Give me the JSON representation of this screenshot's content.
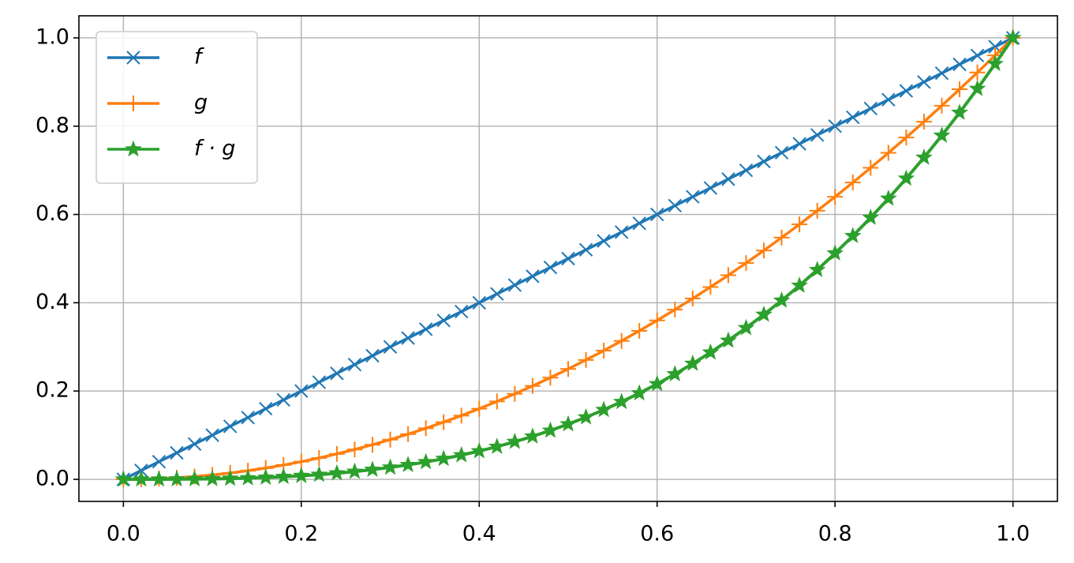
{
  "chart_data": {
    "type": "line",
    "x": [
      0,
      0.02,
      0.04,
      0.06,
      0.08,
      0.1,
      0.12,
      0.14,
      0.16,
      0.18,
      0.2,
      0.22,
      0.24,
      0.26,
      0.28,
      0.3,
      0.32,
      0.34,
      0.36,
      0.38,
      0.4,
      0.42,
      0.44,
      0.46,
      0.48,
      0.5,
      0.52,
      0.54,
      0.56,
      0.58,
      0.6,
      0.62,
      0.64,
      0.66,
      0.68,
      0.7,
      0.72,
      0.74,
      0.76,
      0.78,
      0.8,
      0.82,
      0.84,
      0.86,
      0.88,
      0.9,
      0.92,
      0.94,
      0.96,
      0.98,
      1
    ],
    "series": [
      {
        "name": "f",
        "color": "#1f77b4",
        "marker": "x",
        "values": [
          0,
          0.02,
          0.04,
          0.06,
          0.08,
          0.1,
          0.12,
          0.14,
          0.16,
          0.18,
          0.2,
          0.22,
          0.24,
          0.26,
          0.28,
          0.3,
          0.32,
          0.34,
          0.36,
          0.38,
          0.4,
          0.42,
          0.44,
          0.46,
          0.48,
          0.5,
          0.52,
          0.54,
          0.56,
          0.58,
          0.6,
          0.62,
          0.64,
          0.66,
          0.68,
          0.7,
          0.72,
          0.74,
          0.76,
          0.78,
          0.8,
          0.82,
          0.84,
          0.86,
          0.88,
          0.9,
          0.92,
          0.94,
          0.96,
          0.98,
          1
        ]
      },
      {
        "name": "g",
        "color": "#ff7f0e",
        "marker": "+",
        "values": [
          0,
          0.0004,
          0.0016,
          0.0036,
          0.0064,
          0.01,
          0.0144,
          0.0196,
          0.0256,
          0.0324,
          0.04,
          0.0484,
          0.0576,
          0.0676,
          0.0784,
          0.09,
          0.1024,
          0.1156,
          0.1296,
          0.1444,
          0.16,
          0.1764,
          0.1936,
          0.2116,
          0.2304,
          0.25,
          0.2704,
          0.2916,
          0.3136,
          0.3364,
          0.36,
          0.3844,
          0.4096,
          0.4356,
          0.4624,
          0.49,
          0.5184,
          0.5476,
          0.5776,
          0.6084,
          0.64,
          0.6724,
          0.7056,
          0.7396,
          0.7744,
          0.81,
          0.8464,
          0.8836,
          0.9216,
          0.9604,
          1
        ]
      },
      {
        "name": "f · g",
        "color": "#2ca02c",
        "marker": "star",
        "values": [
          0,
          8e-06,
          6.4e-05,
          0.000216,
          0.000512,
          0.001,
          0.001728,
          0.002744,
          0.004096,
          0.005832,
          0.008,
          0.010648,
          0.013824,
          0.017576,
          0.021952,
          0.027,
          0.032768,
          0.039304,
          0.046656,
          0.054872,
          0.064,
          0.074088,
          0.085184,
          0.097336,
          0.110592,
          0.125,
          0.140608,
          0.157464,
          0.175616,
          0.195112,
          0.216,
          0.238328,
          0.262144,
          0.287496,
          0.314432,
          0.343,
          0.373248,
          0.405224,
          0.438976,
          0.474552,
          0.512,
          0.551368,
          0.592704,
          0.636056,
          0.681472,
          0.729,
          0.778688,
          0.830584,
          0.884736,
          0.941192,
          1
        ]
      }
    ],
    "xlim": [
      -0.05,
      1.05
    ],
    "ylim": [
      -0.05,
      1.05
    ],
    "xticks": [
      {
        "value": 0,
        "label": "0.0"
      },
      0.2,
      0.4,
      0.6,
      0.8,
      {
        "value": 1,
        "label": "1.0"
      }
    ],
    "yticks": [
      {
        "value": 0,
        "label": "0.0"
      },
      0.2,
      0.4,
      0.6,
      0.8,
      {
        "value": 1,
        "label": "1.0"
      }
    ],
    "grid": true,
    "legend": "upper left"
  }
}
